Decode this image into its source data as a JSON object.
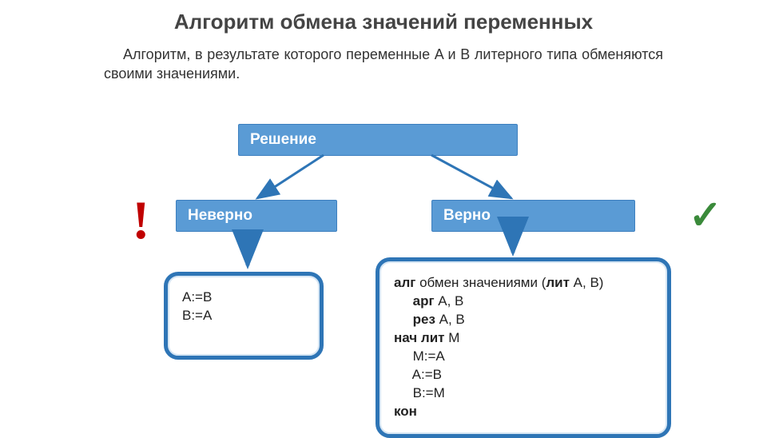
{
  "title": "Алгоритм обмена значений переменных",
  "subtitle": "Алгоритм, в результате которого переменные A и B литерного типа обменяются своими значениями.",
  "labels": {
    "solution": "Решение",
    "wrong": "Неверно",
    "right": "Верно"
  },
  "marks": {
    "excl": "!",
    "check": "✓"
  },
  "wrong_code": "A:=B\nB:=A",
  "right_code_lines": [
    {
      "kw": "алг",
      "rest": " обмен значениями (",
      "kw2": "лит",
      "rest2": " A, B)"
    },
    {
      "indent": "     ",
      "kw": "арг",
      "rest": " A, B"
    },
    {
      "indent": "     ",
      "kw": "рез",
      "rest": " A, B"
    },
    {
      "kw": "нач лит",
      "rest": " M"
    },
    {
      "indent": "     ",
      "rest": "M:=A"
    },
    {
      "indent": "     ",
      "rest": "A:=B"
    },
    {
      "indent": "     ",
      "rest": "B:=M"
    },
    {
      "kw": "кон",
      "rest": ""
    }
  ],
  "colors": {
    "label_bg": "#5a9bd5",
    "label_border": "#3d7fbf",
    "box_border": "#2e75b6",
    "excl": "#c00000",
    "check": "#3a8a3a",
    "title": "#444444"
  },
  "arrows": {
    "shaft_color": "#2e75b6",
    "head_color": "#2e75b6"
  }
}
